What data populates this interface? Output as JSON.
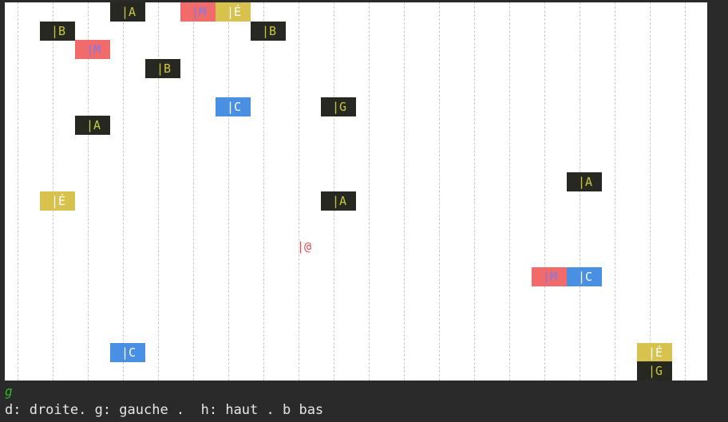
{
  "board": {
    "columns": 20,
    "rows": 20,
    "colors": {
      "background": "#ffffff",
      "grid_line": "#c9c9c9",
      "dark_tile_bg": "#272822",
      "dark_tile_fg": "#c9c93c",
      "red_tile_bg": "#f26b6b",
      "red_tile_fg": "#7a7af0",
      "yellow_tile_bg": "#d8c24e",
      "yellow_tile_fg": "#ffffff",
      "blue_tile_bg": "#4a90e2",
      "blue_tile_fg": "#ffffff",
      "player_fg": "#e05050"
    },
    "tiles": [
      {
        "label": "|A",
        "style": "dark",
        "col": 3,
        "row": 0
      },
      {
        "label": "|M",
        "style": "red",
        "col": 5,
        "row": 0
      },
      {
        "label": "|É",
        "style": "yellow",
        "col": 6,
        "row": 0
      },
      {
        "label": "|B",
        "style": "dark",
        "col": 1,
        "row": 1
      },
      {
        "label": "|B",
        "style": "dark",
        "col": 7,
        "row": 1
      },
      {
        "label": "|M",
        "style": "red",
        "col": 2,
        "row": 2
      },
      {
        "label": "|B",
        "style": "dark",
        "col": 4,
        "row": 3
      },
      {
        "label": "|C",
        "style": "blue",
        "col": 6,
        "row": 5
      },
      {
        "label": "|G",
        "style": "dark",
        "col": 9,
        "row": 5
      },
      {
        "label": "|A",
        "style": "dark",
        "col": 2,
        "row": 6
      },
      {
        "label": "|A",
        "style": "dark",
        "col": 16,
        "row": 9
      },
      {
        "label": "|É",
        "style": "yellow",
        "col": 1,
        "row": 10
      },
      {
        "label": "|A",
        "style": "dark",
        "col": 9,
        "row": 10
      },
      {
        "label": "|M",
        "style": "red",
        "col": 15,
        "row": 14
      },
      {
        "label": "|C",
        "style": "blue",
        "col": 16,
        "row": 14
      },
      {
        "label": "|C",
        "style": "blue",
        "col": 3,
        "row": 18
      },
      {
        "label": "|É",
        "style": "yellow",
        "col": 18,
        "row": 18
      },
      {
        "label": "|G",
        "style": "dark",
        "col": 18,
        "row": 19
      }
    ],
    "player": {
      "label": "|@",
      "col": 8,
      "row": 12
    }
  },
  "command_input": {
    "value": "g"
  },
  "help_text": "d: droite. g: gauche .  h: haut . b bas"
}
